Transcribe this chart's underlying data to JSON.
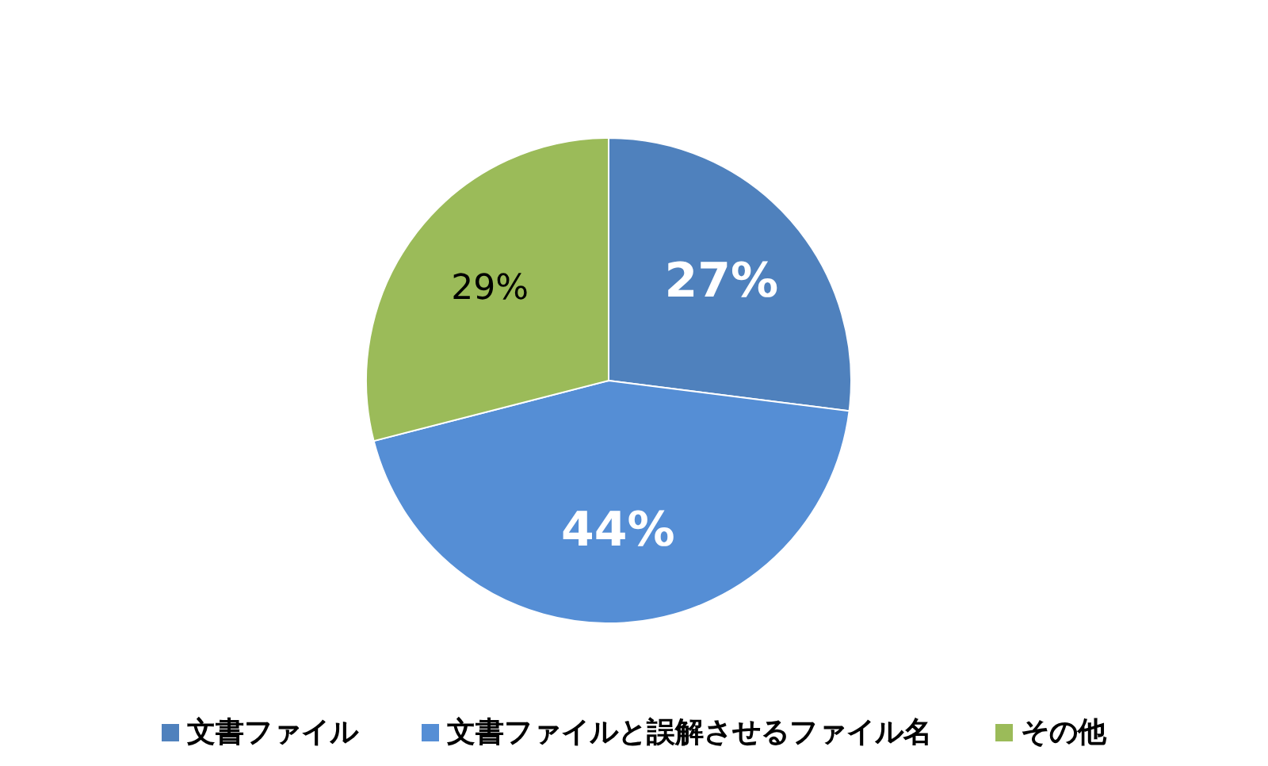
{
  "chart_data": {
    "type": "pie",
    "categories": [
      "文書ファイル",
      "文書ファイルと誤解させるファイル名",
      "その他"
    ],
    "values": [
      27,
      44,
      29
    ],
    "colors": [
      "#4f81bd",
      "#558ed5",
      "#9bbb59"
    ],
    "value_labels": [
      "27%",
      "44%",
      "29%"
    ],
    "legend": "bottom"
  }
}
